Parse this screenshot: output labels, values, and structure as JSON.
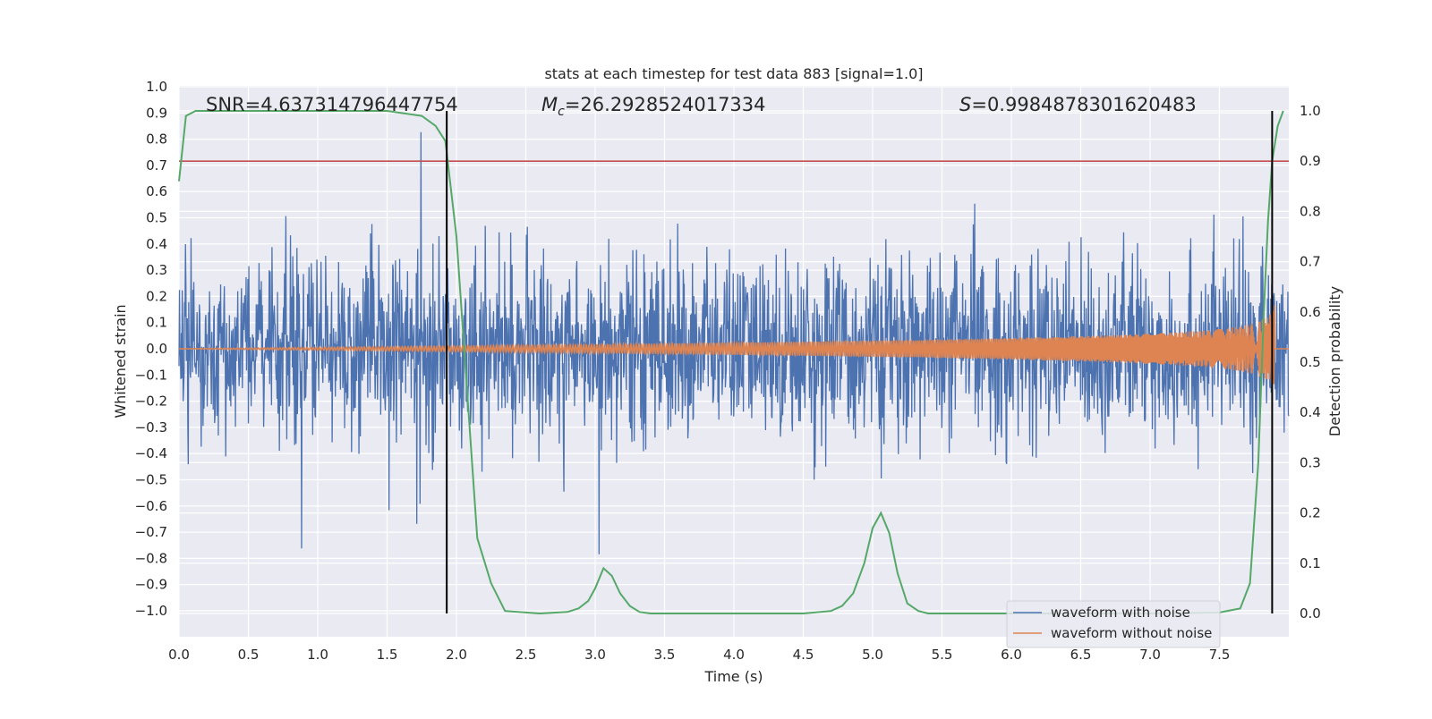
{
  "chart_data": {
    "type": "line",
    "title": "stats at each timestep for test data 883 [signal=1.0]",
    "xlabel": "Time (s)",
    "ylabel_left": "Whitened strain",
    "ylabel_right": "Detection probability",
    "xlim": [
      0.0,
      8.0
    ],
    "ylim_left": [
      -1.09,
      1.0
    ],
    "ylim_right": [
      0.0,
      1.0
    ],
    "x_ticks": [
      "0.0",
      "0.5",
      "1.0",
      "1.5",
      "2.0",
      "2.5",
      "3.0",
      "3.5",
      "4.0",
      "4.5",
      "5.0",
      "5.5",
      "6.0",
      "6.5",
      "7.0",
      "7.5"
    ],
    "y_ticks_left": [
      "1.0",
      "0.9",
      "0.8",
      "0.7",
      "0.6",
      "0.5",
      "0.4",
      "0.3",
      "0.2",
      "0.1",
      "0.0",
      "−0.1",
      "−0.2",
      "−0.3",
      "−0.4",
      "−0.5",
      "−0.6",
      "−0.7",
      "−0.8",
      "−0.9",
      "−1.0"
    ],
    "y_ticks_right": [
      "1.0",
      "0.9",
      "0.8",
      "0.7",
      "0.6",
      "0.5",
      "0.4",
      "0.3",
      "0.2",
      "0.1",
      "0.0"
    ],
    "grid": true,
    "annotations": {
      "snr": "SNR=4.637314796447754",
      "mc_symbol": "M",
      "mc_sub": "c",
      "mc_value": "=26.2928524017334",
      "s_symbol": "S",
      "s_value": "=0.9984878301620483"
    },
    "threshold_line": {
      "axis": "right",
      "y": 0.9,
      "color": "#c44e52"
    },
    "vertical_lines": [
      1.93,
      7.88
    ],
    "series": [
      {
        "name": "waveform with noise",
        "color": "#4c72b0",
        "axis": "left",
        "kind": "noise",
        "std": 0.17,
        "duration": 8.0
      },
      {
        "name": "waveform without noise",
        "color": "#dd8452",
        "axis": "left",
        "kind": "chirp",
        "coalescence": 7.9,
        "peak_amplitude": 0.2
      },
      {
        "name": "detection probability",
        "color": "#55a868",
        "axis": "right",
        "x": [
          0.0,
          0.05,
          0.12,
          0.25,
          0.5,
          1.0,
          1.5,
          1.75,
          1.85,
          1.92,
          2.0,
          2.05,
          2.1,
          2.15,
          2.25,
          2.35,
          2.6,
          2.8,
          2.88,
          2.95,
          3.0,
          3.06,
          3.12,
          3.18,
          3.25,
          3.32,
          3.4,
          3.6,
          4.0,
          4.5,
          4.7,
          4.78,
          4.86,
          4.94,
          5.0,
          5.06,
          5.12,
          5.18,
          5.25,
          5.33,
          5.4,
          5.5,
          6.0,
          7.0,
          7.5,
          7.65,
          7.72,
          7.78,
          7.82,
          7.85,
          7.88,
          7.92,
          7.96
        ],
        "y": [
          0.86,
          0.99,
          1.0,
          1.0,
          1.0,
          1.0,
          1.0,
          0.99,
          0.97,
          0.94,
          0.75,
          0.55,
          0.35,
          0.15,
          0.06,
          0.005,
          0.0,
          0.003,
          0.01,
          0.025,
          0.05,
          0.09,
          0.075,
          0.04,
          0.015,
          0.003,
          0.0,
          0.0,
          0.0,
          0.0,
          0.005,
          0.015,
          0.04,
          0.1,
          0.17,
          0.2,
          0.16,
          0.08,
          0.02,
          0.005,
          0.0,
          0.0,
          0.0,
          0.0,
          0.002,
          0.01,
          0.06,
          0.3,
          0.6,
          0.78,
          0.9,
          0.97,
          1.0
        ]
      }
    ],
    "legend": {
      "location": "lower-right",
      "entries": [
        "waveform with noise",
        "waveform without noise"
      ]
    }
  }
}
